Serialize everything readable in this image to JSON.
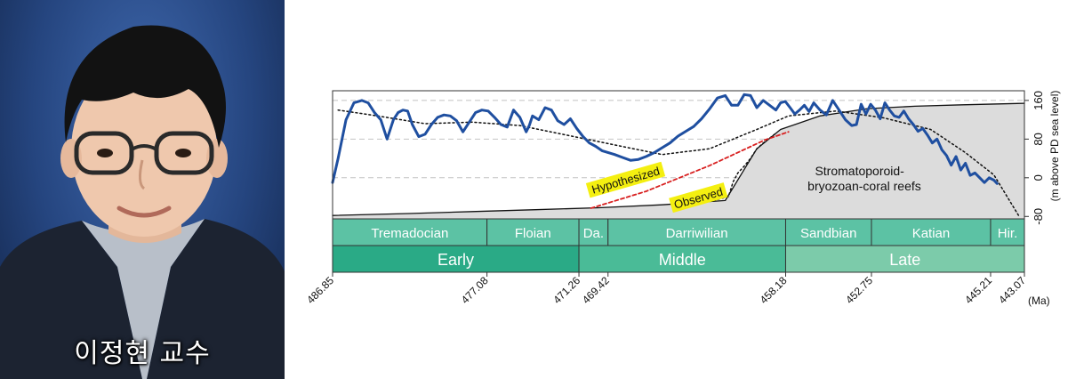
{
  "caption": "이정현 교수",
  "colors": {
    "sea_level_curve": "#1f4fa0",
    "reef_fill": "#dcdcdc",
    "hypothesized_line": "#d82020",
    "label_highlight": "#f4ef10",
    "stage_band": "#5cc2a4",
    "early_band": "#2aaa86",
    "middle_band": "#4abb97",
    "late_band": "#7ccbaa"
  },
  "chart_data": {
    "type": "line",
    "x_axis": {
      "ticks": [
        486.85,
        477.08,
        471.26,
        469.42,
        458.18,
        452.75,
        445.21,
        443.07
      ],
      "tick_labels": [
        "486.85",
        "477.08",
        "471.26",
        "469.42",
        "458.18",
        "452.75",
        "445.21",
        "443.07"
      ],
      "unit": "(Ma)",
      "range": [
        486.85,
        443.07
      ],
      "reversed": true
    },
    "y_axis": {
      "label": "(m above PD sea level)",
      "ticks": [
        -80,
        0,
        80,
        160
      ],
      "range": [
        -85,
        180
      ],
      "side": "right",
      "grid": "dashed"
    },
    "series": [
      {
        "role": "sea-level-curve",
        "style": "solid-blue",
        "x": [
          486.85,
          486.5,
          486.0,
          485.5,
          485.0,
          484.6,
          484.2,
          483.8,
          483.4,
          483.0,
          482.7,
          482.4,
          482.1,
          481.8,
          481.4,
          481.0,
          480.6,
          480.2,
          479.8,
          479.4,
          479.0,
          478.6,
          478.2,
          477.8,
          477.4,
          477.0,
          476.6,
          476.2,
          475.8,
          475.4,
          475.0,
          474.6,
          474.4,
          474.2,
          473.8,
          473.4,
          473.0,
          472.6,
          472.2,
          471.8,
          471.4,
          471.0,
          470.6,
          470.2,
          469.8,
          469.4,
          469.0,
          468.5,
          468.0,
          467.5,
          467.0,
          466.5,
          466.0,
          465.5,
          465.0,
          464.5,
          464.0,
          463.5,
          463.0,
          462.5,
          462.0,
          461.6,
          461.2,
          460.8,
          460.4,
          460.0,
          459.6,
          459.2,
          458.8,
          458.5,
          458.2,
          457.9,
          457.6,
          457.3,
          457.0,
          456.7,
          456.4,
          456.0,
          455.6,
          455.2,
          454.8,
          454.4,
          454.0,
          453.7,
          453.4,
          453.1,
          452.8,
          452.5,
          452.2,
          451.9,
          451.6,
          451.3,
          451.0,
          450.7,
          450.4,
          450.1,
          449.8,
          449.5,
          449.2,
          448.9,
          448.6,
          448.3,
          448.0,
          447.7,
          447.4,
          447.1,
          446.8,
          446.5,
          446.2,
          445.9,
          445.6,
          445.3,
          445.0,
          444.8
        ],
        "y": [
          -10,
          40,
          120,
          155,
          160,
          155,
          135,
          120,
          80,
          120,
          135,
          140,
          138,
          110,
          85,
          90,
          110,
          125,
          130,
          128,
          118,
          95,
          115,
          135,
          140,
          138,
          125,
          110,
          105,
          140,
          125,
          95,
          108,
          128,
          120,
          145,
          140,
          118,
          110,
          122,
          102,
          85,
          72,
          65,
          56,
          52,
          48,
          42,
          36,
          38,
          44,
          52,
          62,
          72,
          86,
          96,
          106,
          122,
          142,
          165,
          170,
          150,
          150,
          172,
          170,
          145,
          160,
          150,
          140,
          155,
          158,
          145,
          132,
          140,
          150,
          137,
          155,
          140,
          130,
          160,
          140,
          120,
          108,
          110,
          152,
          132,
          152,
          140,
          122,
          155,
          140,
          128,
          125,
          138,
          122,
          110,
          96,
          102,
          88,
          72,
          80,
          58,
          46,
          26,
          44,
          16,
          30,
          5,
          10,
          0,
          -10,
          0,
          -5,
          -12
        ]
      },
      {
        "role": "smoothed-curve",
        "style": "dotted-black",
        "x": [
          486.5,
          484.0,
          481.0,
          478.0,
          475.0,
          472.0,
          469.0,
          466.0,
          463.0,
          460.0,
          458.0,
          455.0,
          452.0,
          449.0,
          446.8,
          445.0,
          443.4
        ],
        "y": [
          140,
          128,
          112,
          115,
          108,
          88,
          68,
          48,
          60,
          100,
          128,
          138,
          124,
          100,
          52,
          6,
          -80
        ]
      },
      {
        "role": "observed-reef-boundary",
        "style": "dotted-black",
        "x": [
          465.0,
          462.6,
          461.8,
          461.5,
          461.2,
          460.8,
          460.4,
          460.0,
          459.6,
          459.2,
          458.8
        ],
        "y": [
          -47,
          -46,
          -39,
          -8,
          10,
          24,
          40,
          60,
          72,
          82,
          92
        ]
      },
      {
        "role": "hypothesized-trend",
        "style": "dashed-red",
        "x": [
          470.5,
          467.0,
          463.0,
          459.5,
          458.0
        ],
        "y": [
          -63,
          -28,
          25,
          78,
          95
        ]
      },
      {
        "role": "reef-envelope",
        "style": "solid-black",
        "x": [
          486.85,
          482.0,
          478.0,
          474.0,
          470.0,
          466.0,
          462.0,
          460.0,
          458.5,
          456.0,
          453.0,
          450.0,
          447.0,
          443.07
        ],
        "y": [
          -78,
          -74,
          -70,
          -66,
          -62,
          -56,
          -47,
          60,
          100,
          128,
          143,
          148,
          151,
          154
        ]
      }
    ],
    "labels": [
      {
        "id": "hypothesized",
        "text": "Hypothesized",
        "x": 468.3,
        "y": -5
      },
      {
        "id": "observed",
        "text": "Observed",
        "x": 463.7,
        "y": -42
      },
      {
        "id": "reefs-line1",
        "text": "Stromatoporoid-",
        "x": 453.5,
        "y": 14
      },
      {
        "id": "reefs-line2",
        "text": "bryozoan-coral reefs",
        "x": 453.2,
        "y": -17
      }
    ],
    "timescale": {
      "stages": [
        {
          "name": "Tremadocian",
          "start": 486.85,
          "end": 477.08
        },
        {
          "name": "Floian",
          "start": 477.08,
          "end": 471.26
        },
        {
          "name": "Da.",
          "start": 471.26,
          "end": 469.42
        },
        {
          "name": "Darriwilian",
          "start": 469.42,
          "end": 458.18
        },
        {
          "name": "Sandbian",
          "start": 458.18,
          "end": 452.75
        },
        {
          "name": "Katian",
          "start": 452.75,
          "end": 445.21
        },
        {
          "name": "Hir.",
          "start": 445.21,
          "end": 443.07
        }
      ],
      "epochs": [
        {
          "name": "Early",
          "start": 486.85,
          "end": 471.26
        },
        {
          "name": "Middle",
          "start": 471.26,
          "end": 458.18
        },
        {
          "name": "Late",
          "start": 458.18,
          "end": 443.07
        }
      ]
    }
  }
}
